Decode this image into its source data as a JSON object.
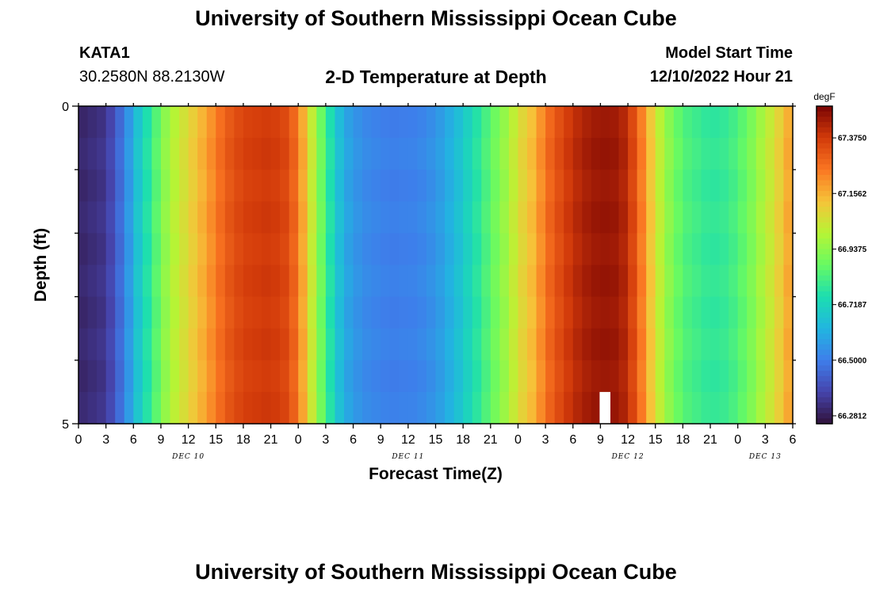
{
  "header": {
    "title": "University of Southern Mississippi Ocean Cube",
    "station": "KATA1",
    "coords": "30.2580N  88.2130W",
    "subtitle": "2-D Temperature at Depth",
    "model_start_label": "Model Start Time",
    "model_start_value": "12/10/2022 Hour 21"
  },
  "footer": {
    "title": "University of Southern Mississippi Ocean Cube"
  },
  "chart_data": {
    "type": "heatmap",
    "xlabel": "Forecast Time(Z)",
    "ylabel": "Depth (ft)",
    "x_tick_labels": [
      "0",
      "3",
      "6",
      "9",
      "12",
      "15",
      "18",
      "21",
      "0",
      "3",
      "6",
      "9",
      "12",
      "15",
      "18",
      "21",
      "0",
      "3",
      "6",
      "9",
      "12",
      "15",
      "18",
      "21",
      "0",
      "3",
      "6"
    ],
    "x_hours": [
      0,
      3,
      6,
      9,
      12,
      15,
      18,
      21,
      24,
      27,
      30,
      33,
      36,
      39,
      42,
      45,
      48,
      51,
      54,
      57,
      60,
      63,
      66,
      69,
      72,
      75,
      78
    ],
    "date_labels": [
      {
        "label": "DEC 10",
        "hour": 12
      },
      {
        "label": "DEC 11",
        "hour": 36
      },
      {
        "label": "DEC 12",
        "hour": 60
      },
      {
        "label": "DEC 13",
        "hour": 75
      }
    ],
    "y_tick_labels": [
      "0",
      "5"
    ],
    "ylim": [
      0,
      5
    ],
    "xlim": [
      0,
      78
    ],
    "depth_levels": [
      0.25,
      0.75,
      1.25,
      1.75,
      2.25,
      2.75,
      3.25,
      3.75,
      4.25,
      4.75
    ],
    "temperature_by_hour": [
      [
        0,
        66.3
      ],
      [
        3,
        66.34
      ],
      [
        5,
        66.5
      ],
      [
        6,
        66.62
      ],
      [
        7,
        66.72
      ],
      [
        8,
        66.8
      ],
      [
        9,
        66.9
      ],
      [
        10,
        66.98
      ],
      [
        12,
        67.08
      ],
      [
        14,
        67.18
      ],
      [
        16,
        67.3
      ],
      [
        18,
        67.36
      ],
      [
        21,
        67.38
      ],
      [
        23,
        67.34
      ],
      [
        24,
        67.24
      ],
      [
        25,
        67.1
      ],
      [
        26,
        66.95
      ],
      [
        27,
        66.82
      ],
      [
        28,
        66.7
      ],
      [
        29,
        66.6
      ],
      [
        31,
        66.53
      ],
      [
        34,
        66.5
      ],
      [
        37,
        66.51
      ],
      [
        39,
        66.55
      ],
      [
        41,
        66.63
      ],
      [
        43,
        66.74
      ],
      [
        45,
        66.86
      ],
      [
        47,
        66.98
      ],
      [
        48,
        67.06
      ],
      [
        50,
        67.16
      ],
      [
        51,
        67.26
      ],
      [
        53,
        67.36
      ],
      [
        55,
        67.43
      ],
      [
        57,
        67.46
      ],
      [
        59,
        67.45
      ],
      [
        60,
        67.4
      ],
      [
        61,
        67.3
      ],
      [
        62,
        67.18
      ],
      [
        63,
        67.06
      ],
      [
        64,
        66.96
      ],
      [
        66,
        66.84
      ],
      [
        69,
        66.78
      ],
      [
        71,
        66.8
      ],
      [
        73,
        66.88
      ],
      [
        75,
        67.0
      ],
      [
        76,
        67.06
      ],
      [
        78,
        67.2
      ]
    ],
    "colorbar": {
      "unit": "degF",
      "labels": [
        "67.3750",
        "67.1562",
        "66.9375",
        "66.7187",
        "66.5000",
        "66.2812"
      ],
      "values": [
        67.375,
        67.15625,
        66.9375,
        66.71875,
        66.5,
        66.28125
      ],
      "range": [
        66.25,
        67.5
      ]
    },
    "missing_cell": {
      "hour": 57,
      "depth": 4.75
    }
  }
}
